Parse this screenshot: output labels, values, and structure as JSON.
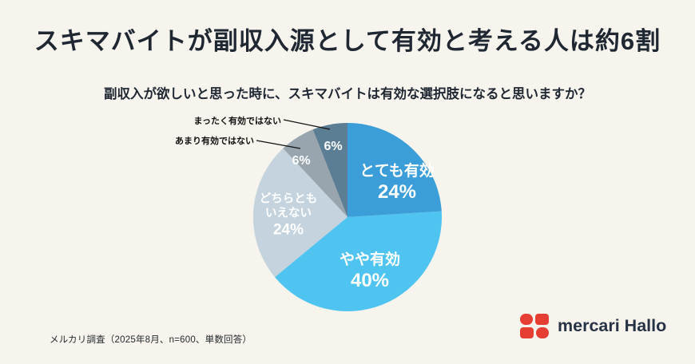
{
  "title": "スキマバイトが副収入源として有効と考える人は約6割",
  "question": "副収入が欲しいと思った時に、スキマバイトは有効な選択肢になると思いますか？",
  "source_note": "メルカリ調査（2025年8月、n=600、単数回答）",
  "logo_text": "mercari Hallo",
  "colors": {
    "background": "#F6F4ED",
    "title_text": "#1F2733",
    "logo_red": "#E63E32",
    "callout_line": "#111111"
  },
  "chart_data": {
    "type": "pie",
    "title": "スキマバイトが副収入源として有効と考える人は約6割",
    "question": "副収入が欲しいと思った時に、スキマバイトは有効な選択肢になると思いますか？",
    "unit": "%",
    "start_angle_deg": 0,
    "direction": "clockwise",
    "legend_position": "on-slices",
    "segments": [
      {
        "label": "とても有効",
        "value": 24,
        "pct_display": "24%",
        "color": "#3C9ED8",
        "label_position": "inside"
      },
      {
        "label": "やや有効",
        "value": 40,
        "pct_display": "40%",
        "color": "#4FC4F0",
        "label_position": "inside"
      },
      {
        "label": "どちらともいえない",
        "value": 24,
        "pct_display": "24%",
        "color": "#C4D3DD",
        "label_position": "inside",
        "label_lines": [
          "どちらとも",
          "いえない"
        ]
      },
      {
        "label": "あまり有効ではない",
        "value": 6,
        "pct_display": "6%",
        "color": "#98A5AF",
        "label_position": "callout"
      },
      {
        "label": "まったく有効ではない",
        "value": 6,
        "pct_display": "6%",
        "color": "#5C7E95",
        "label_position": "callout"
      }
    ]
  }
}
